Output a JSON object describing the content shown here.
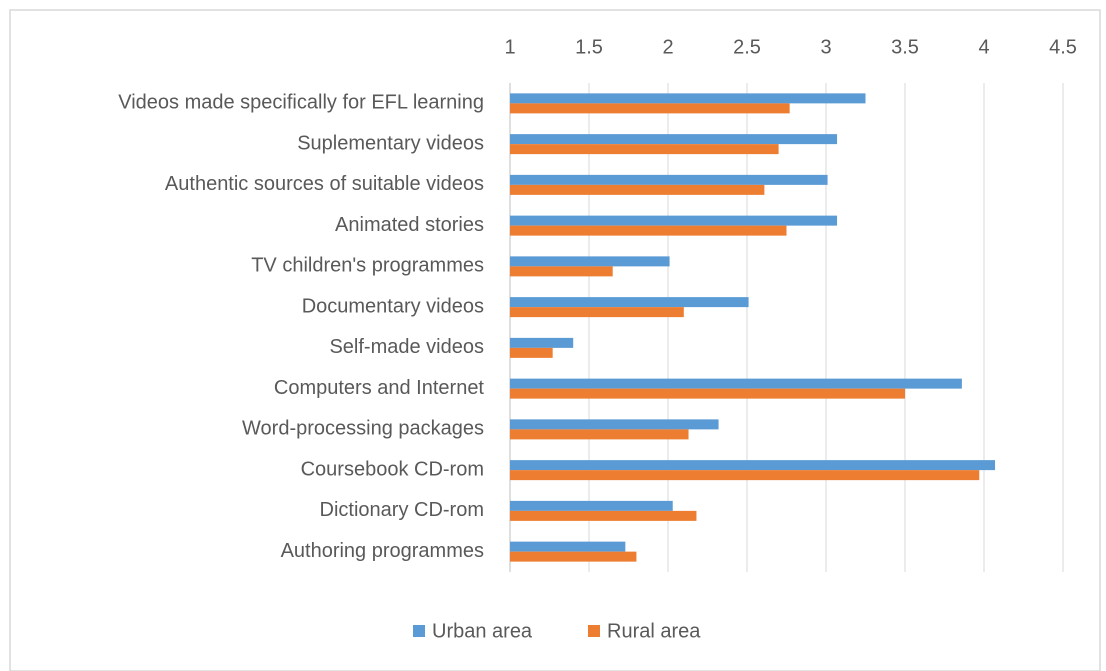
{
  "chart_data": {
    "type": "bar",
    "orientation": "horizontal",
    "categories": [
      "Videos made specifically for EFL learning",
      "Suplementary videos",
      "Authentic sources of suitable videos",
      "Animated stories",
      "TV children's programmes",
      "Documentary videos",
      "Self-made videos",
      "Computers and Internet",
      "Word-processing packages",
      "Coursebook CD-rom",
      "Dictionary CD-rom",
      "Authoring programmes"
    ],
    "series": [
      {
        "name": "Urban area",
        "color": "#5b9bd5",
        "values": [
          3.25,
          3.07,
          3.01,
          3.07,
          2.01,
          2.51,
          1.4,
          3.86,
          2.32,
          4.07,
          2.03,
          1.73
        ]
      },
      {
        "name": "Rural area",
        "color": "#ed7d31",
        "values": [
          2.77,
          2.7,
          2.61,
          2.75,
          1.65,
          2.1,
          1.27,
          3.5,
          2.13,
          3.97,
          2.18,
          1.8
        ]
      }
    ],
    "xlim": [
      1,
      4.5
    ],
    "xticks": [
      1,
      1.5,
      2,
      2.5,
      3,
      3.5,
      4,
      4.5
    ],
    "grid": true,
    "legend": "bottom"
  }
}
